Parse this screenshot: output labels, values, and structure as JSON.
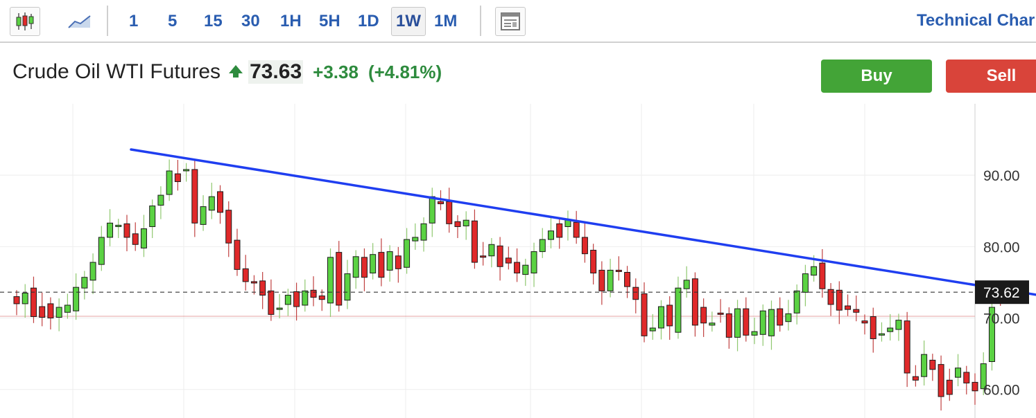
{
  "toolbar": {
    "icons": [
      "candlestick-icon",
      "area-chart-icon",
      "layout-icon"
    ],
    "intervals": [
      "1",
      "5",
      "15",
      "30",
      "1H",
      "5H",
      "1D",
      "1W",
      "1M"
    ],
    "active_interval": "1W",
    "technical_link": "Technical Char"
  },
  "instrument": {
    "name": "Crude Oil WTI Futures",
    "price": "73.63",
    "change": "+3.38",
    "change_pct": "(+4.81%)",
    "direction_icon": "up-arrow-icon"
  },
  "actions": {
    "buy": "Buy",
    "sell": "Sell"
  },
  "colors": {
    "up": "#5bd243",
    "down": "#e0292a",
    "trendline": "#1f3ef0",
    "link": "#2a5db0",
    "buy": "#43a437",
    "sell": "#d9443a",
    "price_label_bg": "#1a1a1a"
  },
  "chart_data": {
    "type": "candlestick",
    "ylim": [
      56,
      100
    ],
    "yticks": [
      "90.00",
      "80.00",
      "70.00",
      "60.00"
    ],
    "ytick_values": [
      90,
      80,
      70,
      60
    ],
    "last_price_label": "73.62",
    "last_price": 73.62,
    "reference_line": 70.25,
    "grid": true,
    "trendline": {
      "start": {
        "bar": 0,
        "value": 93.6
      },
      "end": {
        "bar": 116,
        "value": 73.0
      }
    },
    "candles": [
      [
        73.0,
        72.0
      ],
      [
        72.0,
        73.5
      ],
      [
        74.2,
        70.2
      ],
      [
        71.6,
        70.1
      ],
      [
        72.0,
        70.0
      ],
      [
        70.1,
        71.5
      ],
      [
        70.8,
        71.8
      ],
      [
        71.0,
        74.3
      ],
      [
        74.2,
        75.7
      ],
      [
        75.3,
        77.8
      ],
      [
        77.5,
        81.3
      ],
      [
        81.3,
        83.3
      ],
      [
        82.8,
        83.0
      ],
      [
        83.2,
        81.3
      ],
      [
        81.8,
        80.3
      ],
      [
        79.8,
        82.5
      ],
      [
        82.8,
        85.7
      ],
      [
        85.8,
        87.2
      ],
      [
        87.3,
        90.6
      ],
      [
        90.2,
        89.1
      ],
      [
        90.7,
        90.8
      ],
      [
        90.8,
        83.3
      ],
      [
        83.1,
        85.6
      ],
      [
        85.1,
        87.0
      ],
      [
        87.7,
        84.8
      ],
      [
        85.1,
        80.5
      ],
      [
        80.9,
        76.8
      ],
      [
        76.9,
        75.1
      ],
      [
        75.1,
        74.9
      ],
      [
        75.2,
        73.2
      ],
      [
        73.8,
        70.5
      ],
      [
        71.2,
        71.4
      ],
      [
        71.9,
        73.2
      ],
      [
        73.7,
        71.6
      ],
      [
        71.8,
        73.8
      ],
      [
        73.9,
        72.9
      ],
      [
        73.1,
        72.6
      ],
      [
        72.1,
        78.5
      ],
      [
        79.2,
        71.8
      ],
      [
        72.5,
        76.2
      ],
      [
        75.7,
        78.6
      ],
      [
        78.5,
        75.7
      ],
      [
        76.3,
        78.9
      ],
      [
        79.2,
        75.7
      ],
      [
        76.7,
        79.3
      ],
      [
        78.7,
        76.9
      ],
      [
        77.1,
        81.0
      ],
      [
        80.8,
        81.3
      ],
      [
        80.9,
        83.2
      ],
      [
        83.3,
        87.0
      ],
      [
        86.3,
        86.0
      ],
      [
        86.3,
        83.2
      ],
      [
        83.5,
        82.8
      ],
      [
        82.9,
        83.7
      ],
      [
        83.6,
        77.8
      ],
      [
        78.7,
        78.6
      ],
      [
        78.7,
        80.3
      ],
      [
        80.1,
        77.2
      ],
      [
        78.4,
        77.7
      ],
      [
        77.8,
        76.3
      ],
      [
        76.1,
        77.4
      ],
      [
        76.3,
        79.3
      ],
      [
        79.3,
        81.0
      ],
      [
        81.0,
        82.2
      ],
      [
        83.2,
        81.3
      ],
      [
        82.8,
        83.8
      ],
      [
        83.4,
        81.3
      ],
      [
        81.3,
        79.0
      ],
      [
        79.5,
        76.3
      ],
      [
        76.7,
        73.8
      ],
      [
        73.8,
        76.7
      ],
      [
        76.7,
        76.5
      ],
      [
        76.4,
        74.4
      ],
      [
        74.3,
        72.6
      ],
      [
        73.4,
        67.5
      ],
      [
        68.2,
        68.6
      ],
      [
        68.6,
        71.6
      ],
      [
        71.8,
        68.9
      ],
      [
        68.0,
        74.2
      ],
      [
        74.1,
        75.3
      ],
      [
        75.5,
        69.0
      ],
      [
        71.5,
        69.3
      ],
      [
        69.0,
        69.3
      ],
      [
        70.7,
        70.6
      ],
      [
        70.6,
        67.3
      ],
      [
        67.3,
        71.3
      ],
      [
        71.3,
        67.6
      ],
      [
        67.6,
        68.1
      ],
      [
        67.7,
        71.0
      ],
      [
        67.5,
        71.2
      ],
      [
        71.3,
        69.0
      ],
      [
        69.5,
        70.6
      ],
      [
        70.7,
        73.8
      ],
      [
        73.6,
        76.2
      ],
      [
        76.0,
        77.2
      ],
      [
        77.7,
        74.1
      ],
      [
        74.0,
        71.9
      ],
      [
        73.9,
        71.1
      ],
      [
        71.7,
        71.2
      ],
      [
        71.2,
        70.8
      ],
      [
        69.6,
        69.3
      ],
      [
        70.2,
        67.1
      ],
      [
        67.6,
        67.8
      ],
      [
        68.1,
        68.6
      ],
      [
        68.4,
        69.7
      ],
      [
        69.6,
        62.3
      ],
      [
        61.8,
        61.3
      ],
      [
        61.8,
        64.9
      ],
      [
        64.1,
        62.8
      ],
      [
        63.5,
        59.0
      ],
      [
        61.3,
        59.3
      ],
      [
        61.7,
        63.0
      ],
      [
        62.4,
        60.9
      ],
      [
        61.0,
        59.8
      ],
      [
        60.1,
        63.6
      ],
      [
        63.9,
        71.5
      ],
      [
        74.2,
        73.3
      ]
    ]
  }
}
